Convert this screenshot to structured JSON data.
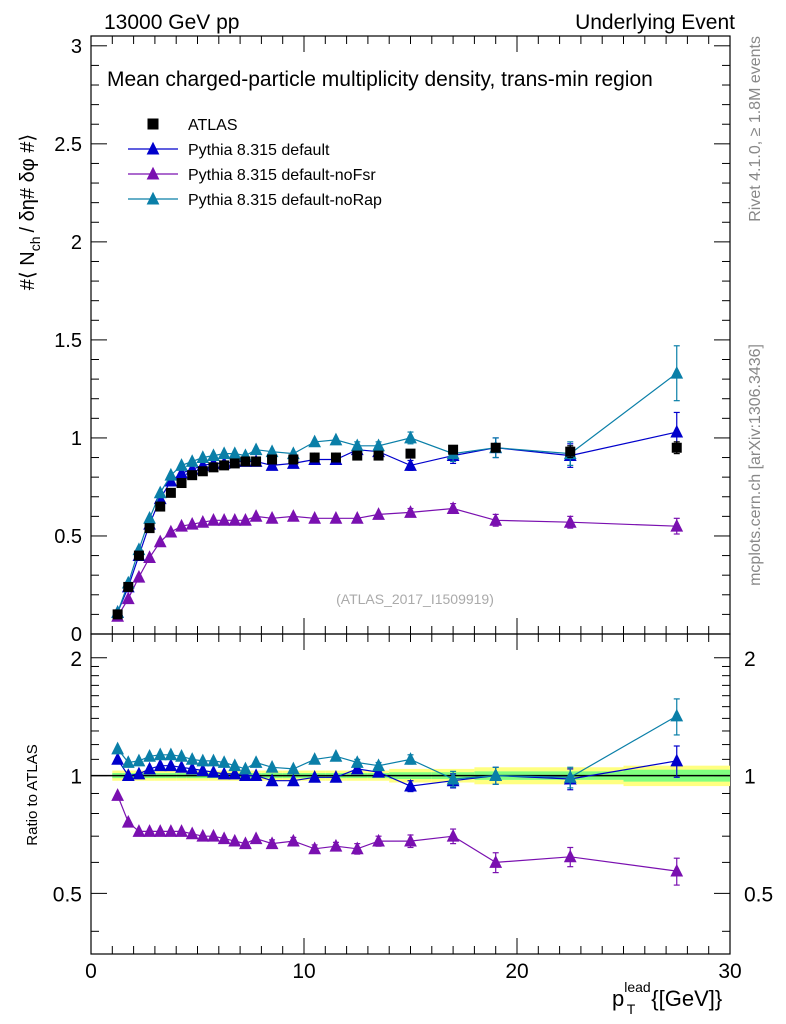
{
  "header": {
    "left": "13000 GeV pp",
    "right": "Underlying Event"
  },
  "side_labels": {
    "rivet": "Rivet 4.1.0, ≥ 1.8M events",
    "mcplots": "mcplots.cern.ch [arXiv:1306.3436]"
  },
  "colors": {
    "atlas": "#000000",
    "default": "#0000cc",
    "noFsr": "#7a10b0",
    "noRap": "#0a7fa8",
    "band_yellow": "#ffff80",
    "band_green": "#80ff80"
  },
  "chart_data": [
    {
      "type": "scatter",
      "panel": "main",
      "title": "Mean charged-particle multiplicity density, trans-min region",
      "watermark": "(ATLAS_2017_I1509919)",
      "ylabel": "#⟨ N_ch / δη# δφ #⟩",
      "ylabel_parts": {
        "pre": "#⟨ N",
        "sub": "ch",
        "post": "/ δη# δφ #⟩"
      },
      "xlim": [
        0,
        30
      ],
      "ylim": [
        0,
        3.05
      ],
      "yticks": [
        0,
        0.5,
        1,
        1.5,
        2,
        2.5,
        3
      ],
      "ytick_labels": [
        "0",
        "0.5",
        "1",
        "1.5",
        "2",
        "2.5",
        "3"
      ],
      "legend_position": "top-left",
      "series": [
        {
          "name": "ATLAS",
          "marker": "square",
          "x": [
            1.25,
            1.75,
            2.25,
            2.75,
            3.25,
            3.75,
            4.25,
            4.75,
            5.25,
            5.75,
            6.25,
            6.75,
            7.25,
            7.75,
            8.5,
            9.5,
            10.5,
            11.5,
            12.5,
            13.5,
            15,
            17,
            19,
            22.5,
            27.5
          ],
          "y": [
            0.1,
            0.24,
            0.4,
            0.54,
            0.65,
            0.72,
            0.77,
            0.81,
            0.83,
            0.85,
            0.86,
            0.87,
            0.88,
            0.88,
            0.89,
            0.89,
            0.9,
            0.9,
            0.91,
            0.91,
            0.92,
            0.94,
            0.95,
            0.93,
            0.95
          ],
          "err": [
            0.01,
            0.01,
            0.01,
            0.01,
            0.01,
            0.01,
            0.01,
            0.01,
            0.01,
            0.01,
            0.01,
            0.01,
            0.01,
            0.01,
            0.01,
            0.01,
            0.01,
            0.01,
            0.01,
            0.01,
            0.01,
            0.02,
            0.02,
            0.03,
            0.03
          ]
        },
        {
          "name": "Pythia 8.315 default",
          "marker": "triangle",
          "x": [
            1.25,
            1.75,
            2.25,
            2.75,
            3.25,
            3.75,
            4.25,
            4.75,
            5.25,
            5.75,
            6.25,
            6.75,
            7.25,
            7.75,
            8.5,
            9.5,
            10.5,
            11.5,
            12.5,
            13.5,
            15,
            17,
            19,
            22.5,
            27.5
          ],
          "y": [
            0.11,
            0.24,
            0.4,
            0.56,
            0.69,
            0.78,
            0.82,
            0.84,
            0.86,
            0.87,
            0.87,
            0.88,
            0.88,
            0.88,
            0.86,
            0.87,
            0.89,
            0.89,
            0.94,
            0.93,
            0.86,
            0.91,
            0.95,
            0.91,
            1.03
          ],
          "err": [
            0.005,
            0.006,
            0.008,
            0.009,
            0.01,
            0.01,
            0.01,
            0.01,
            0.01,
            0.01,
            0.01,
            0.01,
            0.01,
            0.01,
            0.01,
            0.01,
            0.015,
            0.015,
            0.02,
            0.02,
            0.025,
            0.04,
            0.05,
            0.06,
            0.1
          ]
        },
        {
          "name": "Pythia 8.315 default-noFsr",
          "marker": "triangle",
          "x": [
            1.25,
            1.75,
            2.25,
            2.75,
            3.25,
            3.75,
            4.25,
            4.75,
            5.25,
            5.75,
            6.25,
            6.75,
            7.25,
            7.75,
            8.5,
            9.5,
            10.5,
            11.5,
            12.5,
            13.5,
            15,
            17,
            19,
            22.5,
            27.5
          ],
          "y": [
            0.09,
            0.18,
            0.29,
            0.39,
            0.47,
            0.52,
            0.55,
            0.56,
            0.57,
            0.58,
            0.58,
            0.58,
            0.58,
            0.6,
            0.59,
            0.6,
            0.59,
            0.59,
            0.59,
            0.61,
            0.62,
            0.64,
            0.58,
            0.57,
            0.55
          ],
          "err": [
            0.004,
            0.005,
            0.006,
            0.007,
            0.008,
            0.008,
            0.008,
            0.009,
            0.009,
            0.009,
            0.01,
            0.01,
            0.01,
            0.01,
            0.01,
            0.01,
            0.012,
            0.012,
            0.015,
            0.015,
            0.02,
            0.025,
            0.03,
            0.03,
            0.04
          ]
        },
        {
          "name": "Pythia 8.315 default-noRap",
          "marker": "triangle",
          "x": [
            1.25,
            1.75,
            2.25,
            2.75,
            3.25,
            3.75,
            4.25,
            4.75,
            5.25,
            5.75,
            6.25,
            6.75,
            7.25,
            7.75,
            8.5,
            9.5,
            10.5,
            11.5,
            12.5,
            13.5,
            15,
            17,
            19,
            22.5,
            27.5
          ],
          "y": [
            0.11,
            0.26,
            0.43,
            0.59,
            0.72,
            0.81,
            0.86,
            0.88,
            0.9,
            0.91,
            0.92,
            0.92,
            0.91,
            0.94,
            0.93,
            0.92,
            0.98,
            0.99,
            0.96,
            0.96,
            1.0,
            0.92,
            0.95,
            0.92,
            1.33
          ],
          "err": [
            0.005,
            0.006,
            0.008,
            0.009,
            0.01,
            0.01,
            0.01,
            0.01,
            0.01,
            0.01,
            0.01,
            0.01,
            0.01,
            0.01,
            0.01,
            0.01,
            0.015,
            0.015,
            0.02,
            0.02,
            0.03,
            0.04,
            0.05,
            0.06,
            0.14
          ]
        }
      ]
    },
    {
      "type": "scatter",
      "panel": "ratio",
      "ylabel": "Ratio to ATLAS",
      "xlabel": "p_T^lead {[GeV]}",
      "xlabel_parts": {
        "base": "p",
        "sub": "T",
        "sup": "lead",
        "post": "{[GeV]}"
      },
      "xlim": [
        0,
        30
      ],
      "ylim": [
        0.35,
        2.3
      ],
      "ytick_labels_left": [
        "0.5",
        "1",
        "2"
      ],
      "ytick_labels_right": [
        "0.5",
        "1",
        "2"
      ],
      "xtick_labels": [
        "0",
        "10",
        "20",
        "30"
      ],
      "reference_line": 1,
      "band": {
        "x": [
          1,
          1.5,
          2,
          2.5,
          3,
          3.5,
          4,
          4.5,
          5,
          5.5,
          6,
          6.5,
          7,
          7.5,
          8,
          9,
          10,
          11,
          12,
          13,
          14,
          16,
          18,
          20,
          25,
          30
        ],
        "half_width_outer": [
          0.03,
          0.03,
          0.03,
          0.03,
          0.03,
          0.03,
          0.03,
          0.03,
          0.03,
          0.03,
          0.03,
          0.03,
          0.03,
          0.03,
          0.03,
          0.03,
          0.03,
          0.03,
          0.03,
          0.03,
          0.04,
          0.04,
          0.05,
          0.05,
          0.06
        ],
        "half_width_inner": [
          0.015,
          0.015,
          0.015,
          0.015,
          0.015,
          0.015,
          0.015,
          0.015,
          0.015,
          0.015,
          0.015,
          0.015,
          0.015,
          0.015,
          0.015,
          0.015,
          0.015,
          0.015,
          0.015,
          0.015,
          0.02,
          0.02,
          0.025,
          0.025,
          0.035
        ]
      },
      "series": [
        {
          "name": "Pythia 8.315 default",
          "x": [
            1.25,
            1.75,
            2.25,
            2.75,
            3.25,
            3.75,
            4.25,
            4.75,
            5.25,
            5.75,
            6.25,
            6.75,
            7.25,
            7.75,
            8.5,
            9.5,
            10.5,
            11.5,
            12.5,
            13.5,
            15,
            17,
            19,
            22.5,
            27.5
          ],
          "y": [
            1.1,
            1.0,
            1.01,
            1.04,
            1.06,
            1.06,
            1.05,
            1.04,
            1.03,
            1.02,
            1.01,
            1.01,
            1.0,
            1.0,
            0.97,
            0.97,
            0.99,
            0.99,
            1.04,
            1.02,
            0.94,
            0.97,
            1.0,
            0.98,
            1.09
          ],
          "err": [
            0.01,
            0.01,
            0.01,
            0.01,
            0.01,
            0.01,
            0.01,
            0.01,
            0.01,
            0.01,
            0.01,
            0.01,
            0.01,
            0.01,
            0.015,
            0.015,
            0.015,
            0.015,
            0.02,
            0.02,
            0.03,
            0.04,
            0.05,
            0.06,
            0.1
          ]
        },
        {
          "name": "Pythia 8.315 default-noFsr",
          "x": [
            1.25,
            1.75,
            2.25,
            2.75,
            3.25,
            3.75,
            4.25,
            4.75,
            5.25,
            5.75,
            6.25,
            6.75,
            7.25,
            7.75,
            8.5,
            9.5,
            10.5,
            11.5,
            12.5,
            13.5,
            15,
            17,
            19,
            22.5,
            27.5
          ],
          "y": [
            0.89,
            0.76,
            0.72,
            0.72,
            0.72,
            0.72,
            0.72,
            0.71,
            0.7,
            0.7,
            0.69,
            0.68,
            0.67,
            0.69,
            0.67,
            0.68,
            0.65,
            0.66,
            0.65,
            0.68,
            0.68,
            0.7,
            0.6,
            0.62,
            0.57
          ],
          "err": [
            0.01,
            0.01,
            0.01,
            0.01,
            0.01,
            0.01,
            0.01,
            0.01,
            0.01,
            0.01,
            0.01,
            0.01,
            0.01,
            0.01,
            0.015,
            0.015,
            0.015,
            0.015,
            0.02,
            0.02,
            0.025,
            0.03,
            0.035,
            0.035,
            0.045
          ]
        },
        {
          "name": "Pythia 8.315 default-noRap",
          "x": [
            1.25,
            1.75,
            2.25,
            2.75,
            3.25,
            3.75,
            4.25,
            4.75,
            5.25,
            5.75,
            6.25,
            6.75,
            7.25,
            7.75,
            8.5,
            9.5,
            10.5,
            11.5,
            12.5,
            13.5,
            15,
            17,
            19,
            22.5,
            27.5
          ],
          "y": [
            1.17,
            1.08,
            1.09,
            1.12,
            1.13,
            1.13,
            1.12,
            1.1,
            1.09,
            1.09,
            1.08,
            1.06,
            1.04,
            1.08,
            1.05,
            1.04,
            1.1,
            1.12,
            1.08,
            1.06,
            1.1,
            0.98,
            1.0,
            0.99,
            1.42
          ],
          "err": [
            0.01,
            0.01,
            0.01,
            0.01,
            0.01,
            0.01,
            0.01,
            0.01,
            0.01,
            0.01,
            0.01,
            0.01,
            0.01,
            0.01,
            0.015,
            0.015,
            0.015,
            0.015,
            0.02,
            0.02,
            0.03,
            0.045,
            0.05,
            0.06,
            0.15
          ]
        }
      ]
    }
  ]
}
